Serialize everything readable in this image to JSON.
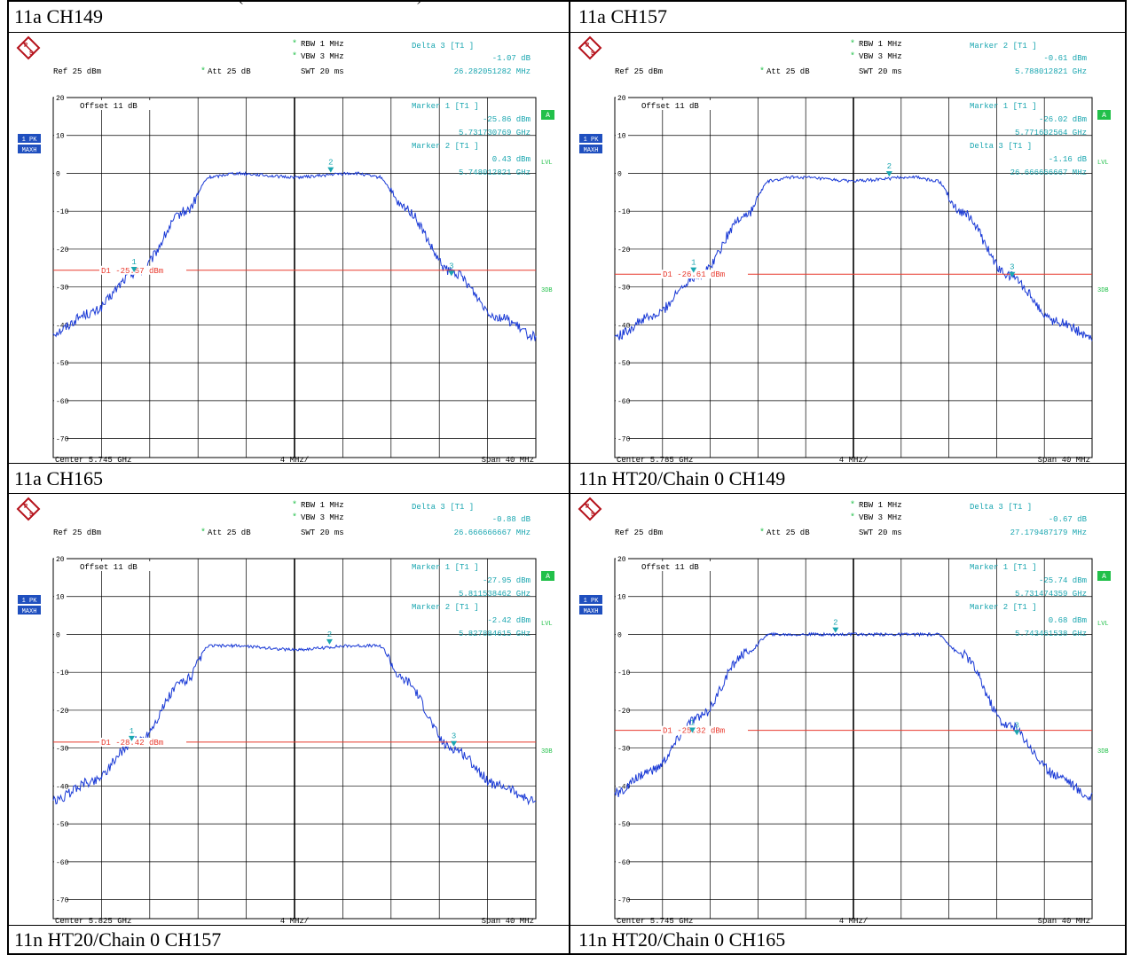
{
  "page": {
    "top_caption_fragment": "(",
    "top_caption_fragment2": ")"
  },
  "panels": [
    {
      "caption": "11a CH149",
      "header": {
        "rbw_label": "RBW",
        "rbw_value": "1 MHz",
        "vbw_label": "VBW",
        "vbw_value": "3 MHz",
        "ref_label": "Ref",
        "ref_value": "25 dBm",
        "att_label": "Att",
        "att_value": "25 dB",
        "swt_label": "SWT",
        "swt_value": "20 ms",
        "marker_lines": [
          "Delta 3 [T1 ]",
          "-1.07 dB",
          "26.282051282 MHz"
        ]
      },
      "offset_text": "Offset 11 dB",
      "plot_marker_lines": [
        "Marker 1 [T1 ]",
        "-25.86 dBm",
        "5.731730769 GHz",
        "Marker 2 [T1 ]",
        "0.43 dBm",
        "5.748012821 GHz"
      ],
      "display_line_text": "D1 -25.57 dBm",
      "center_text": "Center 5.745 GHz",
      "div_text": "4 MHz/",
      "span_text": "Span 40 MHz",
      "side_badges": {
        "trace": "1 PK",
        "mode": "MAXH",
        "a": "A",
        "lvl": "LVL",
        "threedb": "3DB"
      }
    },
    {
      "caption": "11a CH157",
      "header": {
        "rbw_label": "RBW",
        "rbw_value": "1 MHz",
        "vbw_label": "VBW",
        "vbw_value": "3 MHz",
        "ref_label": "Ref",
        "ref_value": "25 dBm",
        "att_label": "Att",
        "att_value": "25 dB",
        "swt_label": "SWT",
        "swt_value": "20 ms",
        "marker_lines": [
          "Marker 2 [T1 ]",
          "-0.61 dBm",
          "5.788012821 GHz"
        ]
      },
      "offset_text": "Offset 11 dB",
      "plot_marker_lines": [
        "Marker 1 [T1 ]",
        "-26.02 dBm",
        "5.771602564 GHz",
        "Delta 3 [T1 ]",
        "-1.16 dB",
        "26.666666667 MHz"
      ],
      "display_line_text": "D1 -26.61 dBm",
      "center_text": "Center 5.785 GHz",
      "div_text": "4 MHz/",
      "span_text": "Span 40 MHz",
      "side_badges": {
        "trace": "1 PK",
        "mode": "MAXH",
        "a": "A",
        "lvl": "LVL",
        "threedb": "3DB"
      }
    },
    {
      "caption": "11a CH165",
      "header": {
        "rbw_label": "RBW",
        "rbw_value": "1 MHz",
        "vbw_label": "VBW",
        "vbw_value": "3 MHz",
        "ref_label": "Ref",
        "ref_value": "25 dBm",
        "att_label": "Att",
        "att_value": "25 dB",
        "swt_label": "SWT",
        "swt_value": "20 ms",
        "marker_lines": [
          "Delta 3 [T1 ]",
          "-0.88 dB",
          "26.666666667 MHz"
        ]
      },
      "offset_text": "Offset 11 dB",
      "plot_marker_lines": [
        "Marker 1 [T1 ]",
        "-27.95 dBm",
        "5.811538462 GHz",
        "Marker 2 [T1 ]",
        "-2.42 dBm",
        "5.827884615 GHz"
      ],
      "display_line_text": "D1 -28.42 dBm",
      "center_text": "Center 5.825 GHz",
      "div_text": "4 MHz/",
      "span_text": "Span 40 MHz",
      "side_badges": {
        "trace": "1 PK",
        "mode": "MAXH",
        "a": "A",
        "lvl": "LVL",
        "threedb": "3DB"
      }
    },
    {
      "caption": "11n HT20/Chain 0 CH149",
      "header": {
        "rbw_label": "RBW",
        "rbw_value": "1 MHz",
        "vbw_label": "VBW",
        "vbw_value": "3 MHz",
        "ref_label": "Ref",
        "ref_value": "25 dBm",
        "att_label": "Att",
        "att_value": "25 dB",
        "swt_label": "SWT",
        "swt_value": "20 ms",
        "marker_lines": [
          "Delta 3 [T1 ]",
          "-0.67 dB",
          "27.179487179 MHz"
        ]
      },
      "offset_text": "Offset 11 dB",
      "plot_marker_lines": [
        "Marker 1 [T1 ]",
        "-25.74 dBm",
        "5.731474359 GHz",
        "Marker 2 [T1 ]",
        "0.68 dBm",
        "5.743461538 GHz"
      ],
      "display_line_text": "D1 -25.32 dBm",
      "center_text": "Center 5.745 GHz",
      "div_text": "4 MHz/",
      "span_text": "Span 40 MHz",
      "side_badges": {
        "trace": "1 PK",
        "mode": "MAXH",
        "a": "A",
        "lvl": "LVL",
        "threedb": "3DB"
      }
    }
  ],
  "bottom_captions": [
    "11n HT20/Chain 0 CH157",
    "11n HT20/Chain 0 CH165"
  ],
  "chart_data": [
    {
      "type": "line",
      "x_unit": "GHz",
      "y_unit": "dBm",
      "xlim": [
        5.725,
        5.765
      ],
      "ylim": [
        -75,
        20
      ],
      "y_ticks": [
        20,
        10,
        0,
        -10,
        -20,
        -30,
        -40,
        -50,
        -60,
        -70
      ],
      "display_line_dbm": -25.57,
      "series": [
        {
          "x": [
            5.725,
            5.728,
            5.732,
            5.736,
            5.738,
            5.74,
            5.745,
            5.75,
            5.752,
            5.754,
            5.758,
            5.762,
            5.765
          ],
          "values": [
            -42,
            -37,
            -26,
            -10,
            -1,
            0,
            -1,
            0,
            -1,
            -9,
            -26,
            -38,
            -43
          ]
        }
      ],
      "markers": [
        {
          "label": "1",
          "x": 5.7317,
          "y": -25.86
        },
        {
          "label": "2",
          "x": 5.748,
          "y": 0.43
        },
        {
          "label": "3",
          "x": 5.758,
          "y": -26.9
        }
      ],
      "colors": {
        "trace": "#1a3ad6",
        "display_line": "#e83a2e",
        "marker": "#1aa6b0",
        "grid": "#000000"
      }
    },
    {
      "type": "line",
      "x_unit": "GHz",
      "y_unit": "dBm",
      "xlim": [
        5.765,
        5.805
      ],
      "ylim": [
        -75,
        20
      ],
      "y_ticks": [
        20,
        10,
        0,
        -10,
        -20,
        -30,
        -40,
        -50,
        -60,
        -70
      ],
      "display_line_dbm": -26.61,
      "series": [
        {
          "x": [
            5.765,
            5.768,
            5.772,
            5.776,
            5.778,
            5.78,
            5.785,
            5.79,
            5.792,
            5.794,
            5.798,
            5.802,
            5.805
          ],
          "values": [
            -43,
            -38,
            -27,
            -11,
            -2,
            -1,
            -2,
            -1,
            -2,
            -10,
            -27,
            -39,
            -43
          ]
        }
      ],
      "markers": [
        {
          "label": "1",
          "x": 5.7716,
          "y": -26.02
        },
        {
          "label": "2",
          "x": 5.788,
          "y": -0.61
        },
        {
          "label": "3",
          "x": 5.7983,
          "y": -27.2
        }
      ],
      "colors": {
        "trace": "#1a3ad6",
        "display_line": "#e83a2e",
        "marker": "#1aa6b0",
        "grid": "#000000"
      }
    },
    {
      "type": "line",
      "x_unit": "GHz",
      "y_unit": "dBm",
      "xlim": [
        5.805,
        5.845
      ],
      "ylim": [
        -75,
        20
      ],
      "y_ticks": [
        20,
        10,
        0,
        -10,
        -20,
        -30,
        -40,
        -50,
        -60,
        -70
      ],
      "display_line_dbm": -28.42,
      "series": [
        {
          "x": [
            5.805,
            5.808,
            5.812,
            5.816,
            5.818,
            5.82,
            5.825,
            5.83,
            5.832,
            5.834,
            5.838,
            5.842,
            5.845
          ],
          "values": [
            -44,
            -39,
            -28,
            -12,
            -3,
            -3,
            -4,
            -3,
            -3,
            -12,
            -30,
            -40,
            -44
          ]
        }
      ],
      "markers": [
        {
          "label": "1",
          "x": 5.8115,
          "y": -27.95
        },
        {
          "label": "2",
          "x": 5.8279,
          "y": -2.42
        },
        {
          "label": "3",
          "x": 5.8382,
          "y": -29.3
        }
      ],
      "colors": {
        "trace": "#1a3ad6",
        "display_line": "#e83a2e",
        "marker": "#1aa6b0",
        "grid": "#000000"
      }
    },
    {
      "type": "line",
      "x_unit": "GHz",
      "y_unit": "dBm",
      "xlim": [
        5.725,
        5.765
      ],
      "ylim": [
        -75,
        20
      ],
      "y_ticks": [
        20,
        10,
        0,
        -10,
        -20,
        -30,
        -40,
        -50,
        -60,
        -70
      ],
      "display_line_dbm": -25.32,
      "series": [
        {
          "x": [
            5.725,
            5.728,
            5.732,
            5.736,
            5.738,
            5.74,
            5.745,
            5.75,
            5.752,
            5.754,
            5.758,
            5.762,
            5.765
          ],
          "values": [
            -42,
            -36,
            -22,
            -5,
            0,
            0,
            0,
            0,
            0,
            -5,
            -24,
            -37,
            -43
          ]
        }
      ],
      "markers": [
        {
          "label": "1",
          "x": 5.7315,
          "y": -25.74
        },
        {
          "label": "2",
          "x": 5.7435,
          "y": 0.68
        },
        {
          "label": "3",
          "x": 5.7587,
          "y": -26.4
        }
      ],
      "colors": {
        "trace": "#1a3ad6",
        "display_line": "#e83a2e",
        "marker": "#1aa6b0",
        "grid": "#000000"
      }
    }
  ]
}
